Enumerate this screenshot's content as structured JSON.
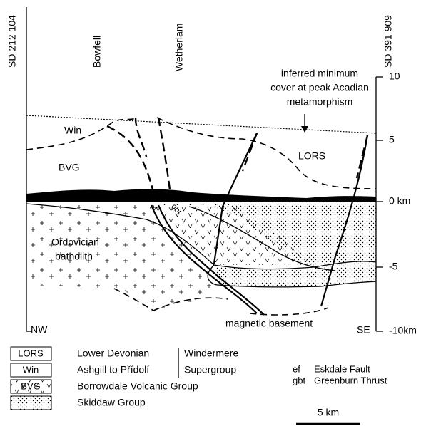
{
  "axis": {
    "left_label": "SD 212 104",
    "right_label": "SD 391 909",
    "ticks": [
      "10",
      "5",
      "0 km",
      "-5",
      "-10km"
    ]
  },
  "places": [
    "Bowfell",
    "Wetherlam"
  ],
  "annotation": [
    "inferred minimum",
    "cover at peak Acadian",
    "metamorphism"
  ],
  "units": {
    "win": "Win",
    "bvg": "BVG",
    "lors": "LORS",
    "batholith": [
      "Ordovician",
      "batholith"
    ],
    "ef": "ef",
    "gbt": "gbt",
    "basement": "magnetic basement"
  },
  "directions": [
    "NW",
    "SE"
  ],
  "legend": {
    "items": [
      {
        "code": "LORS",
        "name": "Lower Devonian"
      },
      {
        "code": "Win",
        "name": "Ashgill to Přídolí"
      },
      {
        "code": "BVG",
        "name": "Borrowdale Volcanic Group"
      },
      {
        "name": "Skiddaw Group"
      }
    ],
    "group": [
      "Windermere",
      "Supergroup"
    ]
  },
  "abbreviations": [
    {
      "code": "ef",
      "name": "Eskdale Fault"
    },
    {
      "code": "gbt",
      "name": "Greenburn Thrust"
    }
  ],
  "scale_bar": "5 km"
}
